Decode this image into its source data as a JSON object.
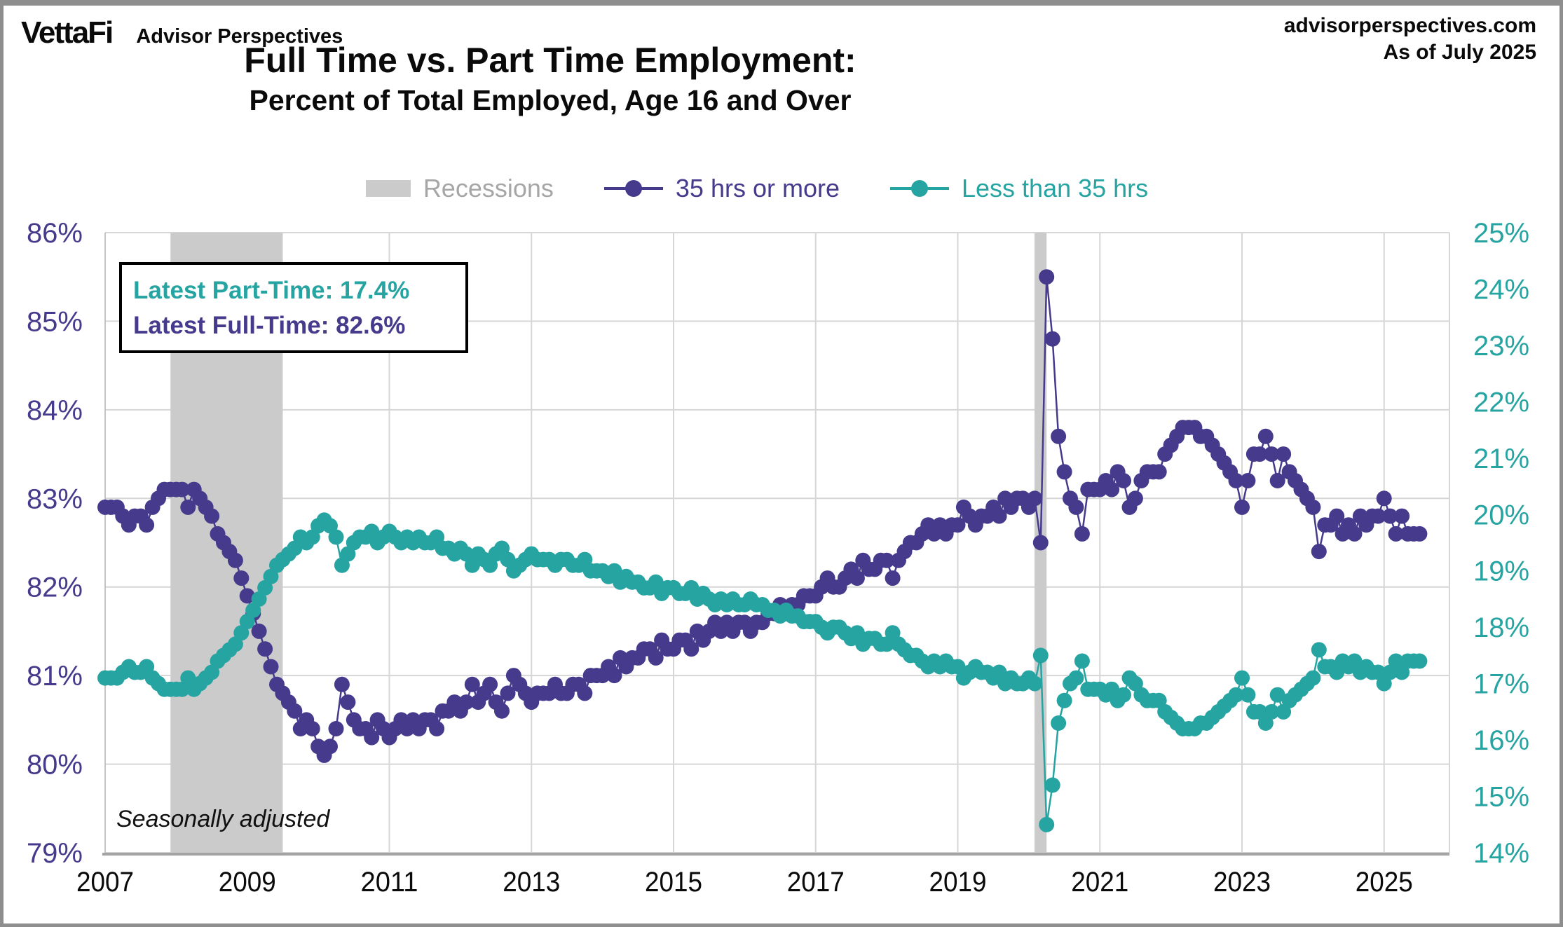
{
  "header": {
    "logo": "VettaFi",
    "logo_subtitle": "Advisor Perspectives",
    "site": "advisorperspectives.com",
    "as_of": "As of July 2025"
  },
  "title": {
    "line1": "Full Time vs. Part Time Employment:",
    "line2": "Percent of Total Employed, Age 16 and Over"
  },
  "legend": {
    "recessions": "Recessions",
    "full_time": "35 hrs or more",
    "part_time": "Less than 35 hrs"
  },
  "annotation": {
    "part_time": "Latest Part-Time: 17.4%",
    "full_time": "Latest Full-Time: 82.6%"
  },
  "footnote": "Seasonally adjusted",
  "colors": {
    "purple": "#453A8C",
    "teal": "#26A4A2",
    "band": "#CBCBCB",
    "grid": "#D6D6D6",
    "axis_line": "#A3A3A3",
    "text_gray": "#A6A6A6"
  },
  "chart_data": {
    "type": "line",
    "frequency": "monthly",
    "start": "2007-01",
    "end": "2025-07",
    "x_domain": [
      2007.0,
      2025.92
    ],
    "x_tick_labels": [
      "2007",
      "2009",
      "2011",
      "2013",
      "2015",
      "2017",
      "2019",
      "2021",
      "2023",
      "2025"
    ],
    "x_gridline_years": [
      2009,
      2011,
      2013,
      2015,
      2017,
      2019,
      2021,
      2023,
      2025
    ],
    "grid": true,
    "legend_position": "top",
    "left_axis": {
      "min": 79,
      "max": 86,
      "step": 1,
      "tick_labels": [
        "86%",
        "85%",
        "84%",
        "83%",
        "82%",
        "81%",
        "80%",
        "79%"
      ],
      "series": "35 hrs or more"
    },
    "right_axis": {
      "min": 14,
      "max": 25,
      "step": 1,
      "tick_labels": [
        "25%",
        "24%",
        "23%",
        "22%",
        "21%",
        "20%",
        "19%",
        "18%",
        "17%",
        "16%",
        "15%",
        "14%"
      ],
      "series": "Less than 35 hrs"
    },
    "recessions": [
      {
        "start": 2007.92,
        "end": 2009.5
      },
      {
        "start": 2020.08,
        "end": 2020.25
      }
    ],
    "series": [
      {
        "name": "35 hrs or more",
        "axis": "left",
        "color": "#453A8C",
        "values": [
          82.9,
          82.9,
          82.9,
          82.8,
          82.7,
          82.8,
          82.8,
          82.7,
          82.9,
          83.0,
          83.1,
          83.1,
          83.1,
          83.1,
          82.9,
          83.1,
          83.0,
          82.9,
          82.8,
          82.6,
          82.5,
          82.4,
          82.3,
          82.1,
          81.9,
          81.7,
          81.5,
          81.3,
          81.1,
          80.9,
          80.8,
          80.7,
          80.6,
          80.4,
          80.5,
          80.4,
          80.2,
          80.1,
          80.2,
          80.4,
          80.9,
          80.7,
          80.5,
          80.4,
          80.4,
          80.3,
          80.5,
          80.4,
          80.3,
          80.4,
          80.5,
          80.4,
          80.5,
          80.4,
          80.5,
          80.5,
          80.4,
          80.6,
          80.6,
          80.7,
          80.6,
          80.7,
          80.9,
          80.7,
          80.8,
          80.9,
          80.7,
          80.6,
          80.8,
          81.0,
          80.9,
          80.8,
          80.7,
          80.8,
          80.8,
          80.8,
          80.9,
          80.8,
          80.8,
          80.9,
          80.9,
          80.8,
          81.0,
          81.0,
          81.0,
          81.1,
          81.0,
          81.2,
          81.1,
          81.2,
          81.2,
          81.3,
          81.3,
          81.2,
          81.4,
          81.3,
          81.3,
          81.4,
          81.4,
          81.3,
          81.5,
          81.4,
          81.5,
          81.6,
          81.5,
          81.6,
          81.5,
          81.6,
          81.6,
          81.5,
          81.6,
          81.6,
          81.7,
          81.7,
          81.8,
          81.7,
          81.8,
          81.8,
          81.9,
          81.9,
          81.9,
          82.0,
          82.1,
          82.0,
          82.0,
          82.1,
          82.2,
          82.1,
          82.3,
          82.2,
          82.2,
          82.3,
          82.3,
          82.1,
          82.3,
          82.4,
          82.5,
          82.5,
          82.6,
          82.7,
          82.6,
          82.7,
          82.6,
          82.7,
          82.7,
          82.9,
          82.8,
          82.7,
          82.8,
          82.8,
          82.9,
          82.8,
          83.0,
          82.9,
          83.0,
          83.0,
          82.9,
          83.0,
          82.5,
          85.5,
          84.8,
          83.7,
          83.3,
          83.0,
          82.9,
          82.6,
          83.1,
          83.1,
          83.1,
          83.2,
          83.1,
          83.3,
          83.2,
          82.9,
          83.0,
          83.2,
          83.3,
          83.3,
          83.3,
          83.5,
          83.6,
          83.7,
          83.8,
          83.8,
          83.8,
          83.7,
          83.7,
          83.6,
          83.5,
          83.4,
          83.3,
          83.2,
          82.9,
          83.2,
          83.5,
          83.5,
          83.7,
          83.5,
          83.2,
          83.5,
          83.3,
          83.2,
          83.1,
          83.0,
          82.9,
          82.4,
          82.7,
          82.7,
          82.8,
          82.6,
          82.7,
          82.6,
          82.8,
          82.7,
          82.8,
          82.8,
          83.0,
          82.8,
          82.6,
          82.8,
          82.6,
          82.6,
          82.6
        ]
      },
      {
        "name": "Less than 35 hrs",
        "axis": "right",
        "color": "#26A4A2",
        "values": [
          17.1,
          17.1,
          17.1,
          17.2,
          17.3,
          17.2,
          17.2,
          17.3,
          17.1,
          17.0,
          16.9,
          16.9,
          16.9,
          16.9,
          17.1,
          16.9,
          17.0,
          17.1,
          17.2,
          17.4,
          17.5,
          17.6,
          17.7,
          17.9,
          18.1,
          18.3,
          18.5,
          18.7,
          18.9,
          19.1,
          19.2,
          19.3,
          19.4,
          19.6,
          19.5,
          19.6,
          19.8,
          19.9,
          19.8,
          19.6,
          19.1,
          19.3,
          19.5,
          19.6,
          19.6,
          19.7,
          19.5,
          19.6,
          19.7,
          19.6,
          19.5,
          19.6,
          19.5,
          19.6,
          19.5,
          19.5,
          19.6,
          19.4,
          19.4,
          19.3,
          19.4,
          19.3,
          19.1,
          19.3,
          19.2,
          19.1,
          19.3,
          19.4,
          19.2,
          19.0,
          19.1,
          19.2,
          19.3,
          19.2,
          19.2,
          19.2,
          19.1,
          19.2,
          19.2,
          19.1,
          19.1,
          19.2,
          19.0,
          19.0,
          19.0,
          18.9,
          19.0,
          18.8,
          18.9,
          18.8,
          18.8,
          18.7,
          18.7,
          18.8,
          18.6,
          18.7,
          18.7,
          18.6,
          18.6,
          18.7,
          18.5,
          18.6,
          18.5,
          18.4,
          18.5,
          18.4,
          18.5,
          18.4,
          18.4,
          18.5,
          18.4,
          18.4,
          18.3,
          18.3,
          18.2,
          18.3,
          18.2,
          18.2,
          18.1,
          18.1,
          18.1,
          18.0,
          17.9,
          18.0,
          18.0,
          17.9,
          17.8,
          17.9,
          17.7,
          17.8,
          17.8,
          17.7,
          17.7,
          17.9,
          17.7,
          17.6,
          17.5,
          17.5,
          17.4,
          17.3,
          17.4,
          17.3,
          17.4,
          17.3,
          17.3,
          17.1,
          17.2,
          17.3,
          17.2,
          17.2,
          17.1,
          17.2,
          17.0,
          17.1,
          17.0,
          17.0,
          17.1,
          17.0,
          17.5,
          14.5,
          15.2,
          16.3,
          16.7,
          17.0,
          17.1,
          17.4,
          16.9,
          16.9,
          16.9,
          16.8,
          16.9,
          16.7,
          16.8,
          17.1,
          17.0,
          16.8,
          16.7,
          16.7,
          16.7,
          16.5,
          16.4,
          16.3,
          16.2,
          16.2,
          16.2,
          16.3,
          16.3,
          16.4,
          16.5,
          16.6,
          16.7,
          16.8,
          17.1,
          16.8,
          16.5,
          16.5,
          16.3,
          16.5,
          16.8,
          16.5,
          16.7,
          16.8,
          16.9,
          17.0,
          17.1,
          17.6,
          17.3,
          17.3,
          17.2,
          17.4,
          17.3,
          17.4,
          17.2,
          17.3,
          17.2,
          17.2,
          17.0,
          17.2,
          17.4,
          17.2,
          17.4,
          17.4,
          17.4
        ]
      }
    ]
  }
}
